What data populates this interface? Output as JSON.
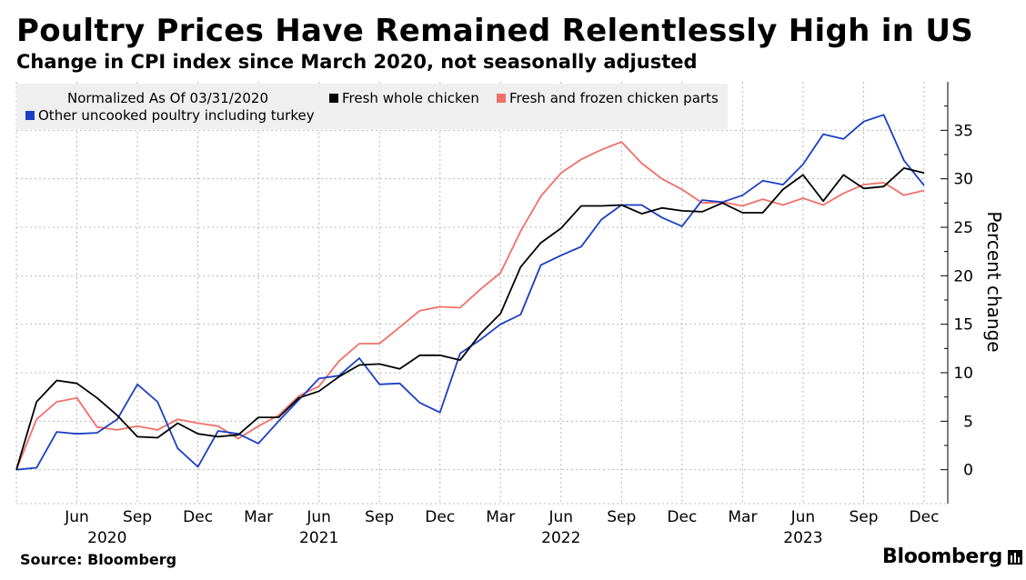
{
  "title": "Poultry Prices Have Remained Relentlessly High in US",
  "subtitle": "Change in CPI index since March 2020, not seasonally adjusted",
  "source": "Source: Bloomberg",
  "brand": "Bloomberg",
  "chart_data": {
    "type": "line",
    "ylabel": "Percent change",
    "ylim": [
      -3.5,
      40
    ],
    "yticks": [
      0,
      5,
      10,
      15,
      20,
      25,
      30,
      35
    ],
    "legend_note": "Normalized As Of 03/31/2020",
    "x": [
      "2020-03",
      "2020-04",
      "2020-05",
      "2020-06",
      "2020-07",
      "2020-08",
      "2020-09",
      "2020-10",
      "2020-11",
      "2020-12",
      "2021-01",
      "2021-02",
      "2021-03",
      "2021-04",
      "2021-05",
      "2021-06",
      "2021-07",
      "2021-08",
      "2021-09",
      "2021-10",
      "2021-11",
      "2021-12",
      "2022-01",
      "2022-02",
      "2022-03",
      "2022-04",
      "2022-05",
      "2022-06",
      "2022-07",
      "2022-08",
      "2022-09",
      "2022-10",
      "2022-11",
      "2022-12",
      "2023-01",
      "2023-02",
      "2023-03",
      "2023-04",
      "2023-05",
      "2023-06",
      "2023-07",
      "2023-08",
      "2023-09",
      "2023-10",
      "2023-11",
      "2023-12"
    ],
    "xticks": [
      {
        "label": "Jun",
        "index": 3
      },
      {
        "label": "Sep",
        "index": 6
      },
      {
        "label": "Dec",
        "index": 9
      },
      {
        "label": "Mar",
        "index": 12
      },
      {
        "label": "Jun",
        "index": 15
      },
      {
        "label": "Sep",
        "index": 18
      },
      {
        "label": "Dec",
        "index": 21
      },
      {
        "label": "Mar",
        "index": 24
      },
      {
        "label": "Jun",
        "index": 27
      },
      {
        "label": "Sep",
        "index": 30
      },
      {
        "label": "Dec",
        "index": 33
      },
      {
        "label": "Mar",
        "index": 36
      },
      {
        "label": "Jun",
        "index": 39
      },
      {
        "label": "Sep",
        "index": 42
      },
      {
        "label": "Dec",
        "index": 45
      }
    ],
    "years": [
      {
        "label": "2020",
        "index": 4.5
      },
      {
        "label": "2021",
        "index": 15
      },
      {
        "label": "2022",
        "index": 27
      },
      {
        "label": "2023",
        "index": 39
      }
    ],
    "series": [
      {
        "name": "Fresh whole chicken",
        "color": "#000000",
        "values": [
          0,
          7.0,
          9.2,
          8.9,
          7.4,
          5.6,
          3.4,
          3.3,
          4.8,
          3.7,
          3.4,
          3.6,
          5.4,
          5.4,
          7.4,
          8.1,
          9.6,
          10.8,
          10.9,
          10.4,
          11.8,
          11.8,
          11.3,
          14.0,
          16.1,
          20.9,
          23.4,
          24.9,
          27.2,
          27.2,
          27.3,
          26.4,
          27.0,
          26.7,
          26.6,
          27.5,
          26.5,
          26.5,
          28.9,
          30.4,
          27.7,
          30.4,
          29.0,
          29.2,
          31.1,
          30.6
        ]
      },
      {
        "name": "Fresh and frozen chicken parts",
        "color": "#f07068",
        "values": [
          0,
          5.2,
          7.0,
          7.4,
          4.4,
          4.1,
          4.5,
          4.1,
          5.2,
          4.8,
          4.5,
          3.2,
          4.5,
          5.6,
          7.6,
          8.6,
          11.2,
          13.0,
          13.0,
          14.7,
          16.4,
          16.8,
          16.7,
          18.6,
          20.3,
          24.6,
          28.2,
          30.6,
          32.0,
          33.0,
          33.8,
          31.6,
          30.0,
          28.9,
          27.5,
          27.6,
          27.2,
          27.9,
          27.3,
          28.0,
          27.3,
          28.5,
          29.4,
          29.6,
          28.3,
          28.8
        ]
      },
      {
        "name": "Other uncooked poultry including turkey",
        "color": "#1a3fc4",
        "values": [
          0,
          0.2,
          3.9,
          3.7,
          3.8,
          5.2,
          8.8,
          7.0,
          2.2,
          0.3,
          4.0,
          3.7,
          2.7,
          5.0,
          7.2,
          9.4,
          9.7,
          11.5,
          8.8,
          8.9,
          6.9,
          5.9,
          12.0,
          13.4,
          15.0,
          16.0,
          21.1,
          22.1,
          23.0,
          25.8,
          27.3,
          27.3,
          26.0,
          25.1,
          27.8,
          27.6,
          28.3,
          29.8,
          29.4,
          31.5,
          34.6,
          34.1,
          35.9,
          36.6,
          31.9,
          29.3
        ]
      }
    ]
  }
}
